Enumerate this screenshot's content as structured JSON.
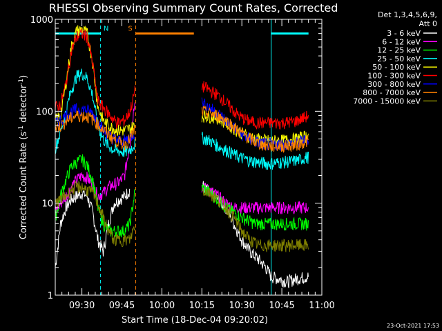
{
  "chart_data": {
    "type": "line",
    "title": "RHESSI Observing Summary Count Rates, Corrected",
    "xlabel": "Start Time (18-Dec-04 09:20:02)",
    "ylabel": "Corrected Count Rate (s",
    "ylabel_sup1": "-1",
    "ylabel_mid": " detector",
    "ylabel_sup2": "-1",
    "ylabel_end": ")",
    "y_scale": "log",
    "ylim": [
      1,
      1000
    ],
    "xlim_minutes": [
      0,
      100
    ],
    "x_tick_labels": [
      {
        "t": 10,
        "label": "09:30"
      },
      {
        "t": 25,
        "label": "09:45"
      },
      {
        "t": 40,
        "label": "10:00"
      },
      {
        "t": 55,
        "label": "10:15"
      },
      {
        "t": 70,
        "label": "10:30"
      },
      {
        "t": 85,
        "label": "10:45"
      },
      {
        "t": 100,
        "label": "11:00"
      }
    ],
    "y_tick_labels": [
      {
        "v": 1,
        "label": "1"
      },
      {
        "v": 10,
        "label": "10"
      },
      {
        "v": 100,
        "label": "100"
      },
      {
        "v": 1000,
        "label": "1000"
      }
    ],
    "legend_header": [
      "Det 1,3,4,5,6,9,",
      "Att 0"
    ],
    "legend_placement": "right",
    "series": [
      {
        "name": "3 - 6 keV",
        "color": "#ffffff",
        "segA": [
          [
            0,
            2
          ],
          [
            2,
            6
          ],
          [
            4,
            9
          ],
          [
            6,
            11
          ],
          [
            8,
            12
          ],
          [
            10,
            13
          ],
          [
            12,
            12
          ],
          [
            14,
            8
          ],
          [
            16,
            4
          ],
          [
            18,
            3
          ],
          [
            20,
            6
          ],
          [
            22,
            10
          ],
          [
            24,
            11
          ],
          [
            26,
            12
          ],
          [
            28,
            14
          ]
        ],
        "segB": [
          [
            55,
            16
          ],
          [
            58,
            13
          ],
          [
            61,
            11
          ],
          [
            64,
            9
          ],
          [
            67,
            6
          ],
          [
            70,
            4
          ],
          [
            73,
            3
          ],
          [
            76,
            2.5
          ],
          [
            79,
            2
          ],
          [
            81,
            1.6
          ],
          [
            84,
            1.5
          ],
          [
            87,
            1.4
          ],
          [
            90,
            1.5
          ],
          [
            95,
            1.6
          ]
        ]
      },
      {
        "name": "6 - 12 keV",
        "color": "#ff00ff",
        "segA": [
          [
            0,
            8
          ],
          [
            2,
            10
          ],
          [
            4,
            12
          ],
          [
            6,
            15
          ],
          [
            8,
            18
          ],
          [
            10,
            20
          ],
          [
            12,
            19
          ],
          [
            14,
            16
          ],
          [
            16,
            12
          ],
          [
            18,
            13
          ],
          [
            20,
            15
          ],
          [
            22,
            16
          ],
          [
            24,
            17
          ],
          [
            26,
            20
          ],
          [
            28,
            45
          ],
          [
            30,
            150
          ]
        ],
        "segB": [
          [
            55,
            15
          ],
          [
            58,
            14
          ],
          [
            61,
            12
          ],
          [
            64,
            10
          ],
          [
            67,
            9
          ],
          [
            70,
            9
          ],
          [
            75,
            9
          ],
          [
            80,
            9
          ],
          [
            85,
            9
          ],
          [
            90,
            9
          ],
          [
            95,
            9
          ]
        ]
      },
      {
        "name": "12 - 25 keV",
        "color": "#00ff00",
        "segA": [
          [
            0,
            7
          ],
          [
            2,
            12
          ],
          [
            4,
            18
          ],
          [
            6,
            25
          ],
          [
            8,
            28
          ],
          [
            10,
            30
          ],
          [
            12,
            26
          ],
          [
            14,
            18
          ],
          [
            16,
            9
          ],
          [
            18,
            6
          ],
          [
            20,
            5
          ],
          [
            22,
            5
          ],
          [
            24,
            5
          ],
          [
            26,
            5
          ],
          [
            28,
            6
          ],
          [
            30,
            14
          ]
        ],
        "segB": [
          [
            55,
            15
          ],
          [
            58,
            13
          ],
          [
            61,
            11
          ],
          [
            64,
            9
          ],
          [
            67,
            8
          ],
          [
            70,
            7
          ],
          [
            75,
            6
          ],
          [
            80,
            6
          ],
          [
            85,
            6
          ],
          [
            90,
            6
          ],
          [
            95,
            6
          ]
        ]
      },
      {
        "name": "25 - 50 keV",
        "color": "#00ffff",
        "segA": [
          [
            0,
            40
          ],
          [
            2,
            60
          ],
          [
            4,
            100
          ],
          [
            6,
            170
          ],
          [
            8,
            240
          ],
          [
            10,
            260
          ],
          [
            12,
            230
          ],
          [
            14,
            150
          ],
          [
            16,
            70
          ],
          [
            18,
            50
          ],
          [
            20,
            42
          ],
          [
            22,
            38
          ],
          [
            24,
            37
          ],
          [
            26,
            36
          ],
          [
            28,
            38
          ],
          [
            30,
            45
          ]
        ],
        "segB": [
          [
            55,
            52
          ],
          [
            58,
            48
          ],
          [
            61,
            42
          ],
          [
            64,
            38
          ],
          [
            67,
            34
          ],
          [
            70,
            31
          ],
          [
            73,
            29
          ],
          [
            76,
            28
          ],
          [
            80,
            27
          ],
          [
            85,
            28
          ],
          [
            90,
            29
          ],
          [
            95,
            32
          ]
        ]
      },
      {
        "name": "50 - 100 keV",
        "color": "#ffff00",
        "segA": [
          [
            0,
            80
          ],
          [
            2,
            90
          ],
          [
            4,
            200
          ],
          [
            6,
            500
          ],
          [
            8,
            750
          ],
          [
            10,
            780
          ],
          [
            12,
            700
          ],
          [
            14,
            350
          ],
          [
            16,
            110
          ],
          [
            18,
            80
          ],
          [
            20,
            70
          ],
          [
            22,
            65
          ],
          [
            24,
            62
          ],
          [
            26,
            62
          ],
          [
            28,
            65
          ],
          [
            30,
            70
          ]
        ],
        "segB": [
          [
            55,
            90
          ],
          [
            58,
            88
          ],
          [
            61,
            85
          ],
          [
            64,
            75
          ],
          [
            67,
            65
          ],
          [
            70,
            58
          ],
          [
            73,
            53
          ],
          [
            76,
            50
          ],
          [
            80,
            48
          ],
          [
            85,
            48
          ],
          [
            90,
            50
          ],
          [
            95,
            55
          ]
        ]
      },
      {
        "name": "100 - 300 keV",
        "color": "#ff0000",
        "segA": [
          [
            0,
            110
          ],
          [
            2,
            120
          ],
          [
            4,
            200
          ],
          [
            6,
            450
          ],
          [
            8,
            650
          ],
          [
            10,
            700
          ],
          [
            12,
            650
          ],
          [
            14,
            330
          ],
          [
            16,
            130
          ],
          [
            18,
            110
          ],
          [
            20,
            95
          ],
          [
            22,
            80
          ],
          [
            24,
            75
          ],
          [
            26,
            80
          ],
          [
            28,
            100
          ],
          [
            30,
            170
          ]
        ],
        "segB": [
          [
            55,
            190
          ],
          [
            58,
            170
          ],
          [
            61,
            150
          ],
          [
            64,
            125
          ],
          [
            67,
            100
          ],
          [
            70,
            85
          ],
          [
            73,
            78
          ],
          [
            76,
            75
          ],
          [
            80,
            75
          ],
          [
            85,
            75
          ],
          [
            90,
            78
          ],
          [
            95,
            90
          ]
        ]
      },
      {
        "name": "300 - 800 keV",
        "color": "#0000ff",
        "segA": [
          [
            0,
            75
          ],
          [
            2,
            80
          ],
          [
            4,
            90
          ],
          [
            6,
            100
          ],
          [
            8,
            105
          ],
          [
            10,
            105
          ],
          [
            12,
            103
          ],
          [
            14,
            95
          ],
          [
            16,
            80
          ],
          [
            18,
            62
          ],
          [
            20,
            55
          ],
          [
            22,
            50
          ],
          [
            24,
            48
          ],
          [
            26,
            48
          ],
          [
            28,
            52
          ],
          [
            30,
            60
          ]
        ],
        "segB": [
          [
            55,
            125
          ],
          [
            58,
            110
          ],
          [
            61,
            95
          ],
          [
            64,
            80
          ],
          [
            67,
            66
          ],
          [
            70,
            56
          ],
          [
            73,
            50
          ],
          [
            76,
            46
          ],
          [
            80,
            44
          ],
          [
            85,
            44
          ],
          [
            90,
            45
          ],
          [
            95,
            50
          ]
        ]
      },
      {
        "name": "800 - 7000 keV",
        "color": "#ff8000",
        "segA": [
          [
            0,
            65
          ],
          [
            2,
            70
          ],
          [
            4,
            78
          ],
          [
            6,
            85
          ],
          [
            8,
            90
          ],
          [
            10,
            90
          ],
          [
            12,
            88
          ],
          [
            14,
            82
          ],
          [
            16,
            72
          ],
          [
            18,
            63
          ],
          [
            20,
            56
          ],
          [
            22,
            50
          ],
          [
            24,
            46
          ],
          [
            26,
            44
          ],
          [
            28,
            50
          ],
          [
            30,
            65
          ]
        ],
        "segB": [
          [
            55,
            100
          ],
          [
            58,
            95
          ],
          [
            61,
            90
          ],
          [
            64,
            80
          ],
          [
            67,
            68
          ],
          [
            70,
            58
          ],
          [
            73,
            50
          ],
          [
            76,
            45
          ],
          [
            80,
            42
          ],
          [
            85,
            42
          ],
          [
            90,
            43
          ],
          [
            95,
            48
          ]
        ]
      },
      {
        "name": "7000 - 15000 keV",
        "color": "#808000",
        "segA": [
          [
            0,
            10
          ],
          [
            2,
            11
          ],
          [
            4,
            12
          ],
          [
            6,
            14
          ],
          [
            8,
            15
          ],
          [
            10,
            15
          ],
          [
            12,
            14
          ],
          [
            14,
            13
          ],
          [
            16,
            10
          ],
          [
            18,
            7
          ],
          [
            20,
            5
          ],
          [
            22,
            4
          ],
          [
            24,
            4
          ],
          [
            26,
            4
          ],
          [
            28,
            4
          ],
          [
            30,
            6
          ]
        ],
        "segB": [
          [
            55,
            14
          ],
          [
            58,
            13
          ],
          [
            61,
            11
          ],
          [
            64,
            9
          ],
          [
            67,
            7
          ],
          [
            70,
            5
          ],
          [
            73,
            4
          ],
          [
            76,
            3.5
          ],
          [
            80,
            3.5
          ],
          [
            85,
            3.5
          ],
          [
            90,
            3.5
          ],
          [
            95,
            3.5
          ]
        ]
      }
    ],
    "annotations": [
      {
        "label": "N",
        "color": "#00ffff",
        "t": 17,
        "bar_start": 0,
        "bar_end": 17,
        "line_style": "dashed"
      },
      {
        "label": "S",
        "color": "#ff8000",
        "t": 30.2,
        "bar_start": 30.2,
        "bar_end": 52,
        "line_style": "dashed"
      },
      {
        "label": "",
        "color": "#00ffff",
        "t": 81,
        "bar_start": 81,
        "bar_end": 95,
        "line_style": "solid"
      }
    ]
  },
  "footer_date": "23-Oct-2021 17:53"
}
